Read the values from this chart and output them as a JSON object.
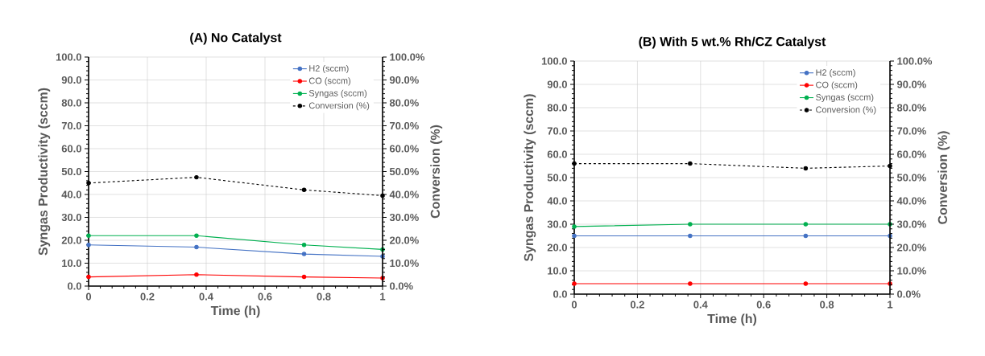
{
  "chart_data": [
    {
      "type": "line",
      "title": "(A) No Catalyst",
      "xlabel": "Time (h)",
      "ylabel": "Syngas Productivity (sccm)",
      "y2label": "Conversion (%)",
      "x": [
        0,
        0.367,
        0.733,
        1
      ],
      "series": [
        {
          "name": "H2 (sccm)",
          "color": "#4472c4",
          "values": [
            18,
            17,
            14,
            13
          ]
        },
        {
          "name": "CO (sccm)",
          "color": "#ff0000",
          "values": [
            4,
            5,
            4,
            3.5
          ]
        },
        {
          "name": "Syngas (sccm)",
          "color": "#00b050",
          "values": [
            22,
            22,
            18,
            16
          ]
        },
        {
          "name": "Conversion (%)",
          "color": "#000000",
          "values": [
            45,
            47.5,
            42,
            39.5
          ],
          "axis": "y2",
          "line_style": "dashed"
        }
      ],
      "xlim": [
        0,
        1
      ],
      "xticks": [
        0,
        0.2,
        0.4,
        0.6,
        0.8,
        1
      ],
      "ylim": [
        0,
        100
      ],
      "yticks": [
        {
          "value": 0,
          "label": "0.0"
        },
        {
          "value": 10,
          "label": "10.0"
        },
        {
          "value": 20,
          "label": "20.0"
        },
        {
          "value": 30,
          "label": "30.0"
        },
        {
          "value": 40,
          "label": "40.0"
        },
        {
          "value": 50,
          "label": "50.0"
        },
        {
          "value": 60,
          "label": "60.0"
        },
        {
          "value": 70,
          "label": "70.0"
        },
        {
          "value": 80,
          "label": "80.0"
        },
        {
          "value": 90,
          "label": "90.0"
        },
        {
          "value": 100,
          "label": "100.0"
        }
      ],
      "y2lim": [
        0,
        100
      ],
      "y2ticks": [
        {
          "value": 0,
          "label": "0.0%"
        },
        {
          "value": 10,
          "label": "10.0%"
        },
        {
          "value": 20,
          "label": "20.0%"
        },
        {
          "value": 30,
          "label": "30.0%"
        },
        {
          "value": 40,
          "label": "40.0%"
        },
        {
          "value": 50,
          "label": "50.0%"
        },
        {
          "value": 60,
          "label": "60.0%"
        },
        {
          "value": 70,
          "label": "70.0%"
        },
        {
          "value": 80,
          "label": "80.0%"
        },
        {
          "value": 90,
          "label": "90.0%"
        },
        {
          "value": 100,
          "label": "100.0%"
        }
      ],
      "grid": true,
      "legend": "top right",
      "marker": "circle"
    },
    {
      "type": "line",
      "title": "(B) With 5 wt.% Rh/CZ Catalyst",
      "xlabel": "Time (h)",
      "ylabel": "Syngas Productivity (sccm)",
      "y2label": "Conversion (%)",
      "x": [
        0,
        0.367,
        0.733,
        1
      ],
      "series": [
        {
          "name": "H2 (sccm)",
          "color": "#4472c4",
          "values": [
            25,
            25,
            25,
            25
          ]
        },
        {
          "name": "CO (sccm)",
          "color": "#ff0000",
          "values": [
            4.5,
            4.5,
            4.5,
            4.5
          ]
        },
        {
          "name": "Syngas (sccm)",
          "color": "#00b050",
          "values": [
            29,
            30,
            30,
            30
          ]
        },
        {
          "name": "Conversion (%)",
          "color": "#000000",
          "values": [
            56,
            56,
            54,
            55
          ],
          "axis": "y2",
          "line_style": "dashed"
        }
      ],
      "xlim": [
        0,
        1
      ],
      "xticks": [
        0,
        0.2,
        0.4,
        0.6,
        0.8,
        1
      ],
      "ylim": [
        0,
        100
      ],
      "yticks": [
        {
          "value": 0,
          "label": "0.0"
        },
        {
          "value": 10,
          "label": "10.0"
        },
        {
          "value": 20,
          "label": "20.0"
        },
        {
          "value": 30,
          "label": "30.0"
        },
        {
          "value": 40,
          "label": "40.0"
        },
        {
          "value": 50,
          "label": "50.0"
        },
        {
          "value": 60,
          "label": "60.0"
        },
        {
          "value": 70,
          "label": "70.0"
        },
        {
          "value": 80,
          "label": "80.0"
        },
        {
          "value": 90,
          "label": "90.0"
        },
        {
          "value": 100,
          "label": "100.0"
        }
      ],
      "y2lim": [
        0,
        100
      ],
      "y2ticks": [
        {
          "value": 0,
          "label": "0.0%"
        },
        {
          "value": 10,
          "label": "10.0%"
        },
        {
          "value": 20,
          "label": "20.0%"
        },
        {
          "value": 30,
          "label": "30.0%"
        },
        {
          "value": 40,
          "label": "40.0%"
        },
        {
          "value": 50,
          "label": "50.0%"
        },
        {
          "value": 60,
          "label": "60.0%"
        },
        {
          "value": 70,
          "label": "70.0%"
        },
        {
          "value": 80,
          "label": "80.0%"
        },
        {
          "value": 90,
          "label": "90.0%"
        },
        {
          "value": 100,
          "label": "100.0%"
        }
      ],
      "grid": true,
      "legend": "top right",
      "marker": "circle"
    }
  ]
}
